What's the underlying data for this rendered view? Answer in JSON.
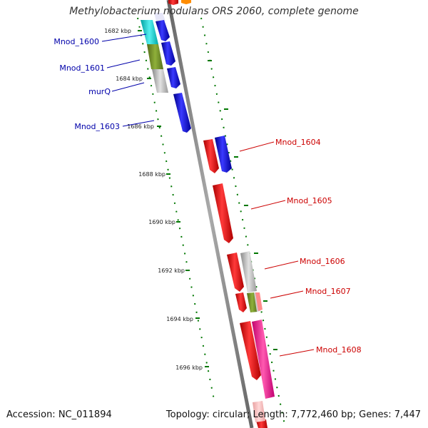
{
  "title": "Methylobacterium nodulans ORS 2060, complete genome",
  "footer": {
    "accession": "Accession: NC_011894",
    "topology": "Topology: circular; Length: 7,772,460 bp; Genes: 7,447"
  },
  "ruler_labels": [
    "1682 kbp",
    "1684 kbp",
    "1686 kbp",
    "1688 kbp",
    "1690 kbp",
    "1692 kbp",
    "1694 kbp",
    "1696 kbp"
  ],
  "genes_left": [
    {
      "label": "Mnod_1600"
    },
    {
      "label": "Mnod_1601"
    },
    {
      "label": "murQ"
    },
    {
      "label": "Mnod_1603"
    }
  ],
  "genes_right": [
    {
      "label": "Mnod_1604"
    },
    {
      "label": "Mnod_1605"
    },
    {
      "label": "Mnod_1606"
    },
    {
      "label": "Mnod_1607"
    },
    {
      "label": "Mnod_1608"
    }
  ],
  "colors": {
    "forward_cds": "#0000ff",
    "reverse_cds": "#ff0000",
    "grey_feature": "#bbbbbb",
    "olive_feature": "#6b8e23",
    "cyan_feature": "#00cccc",
    "pink_feature": "#ff1493",
    "tick": "#007700",
    "backbone": "#808080",
    "label_left": "#0000aa",
    "label_right": "#cc0000"
  }
}
